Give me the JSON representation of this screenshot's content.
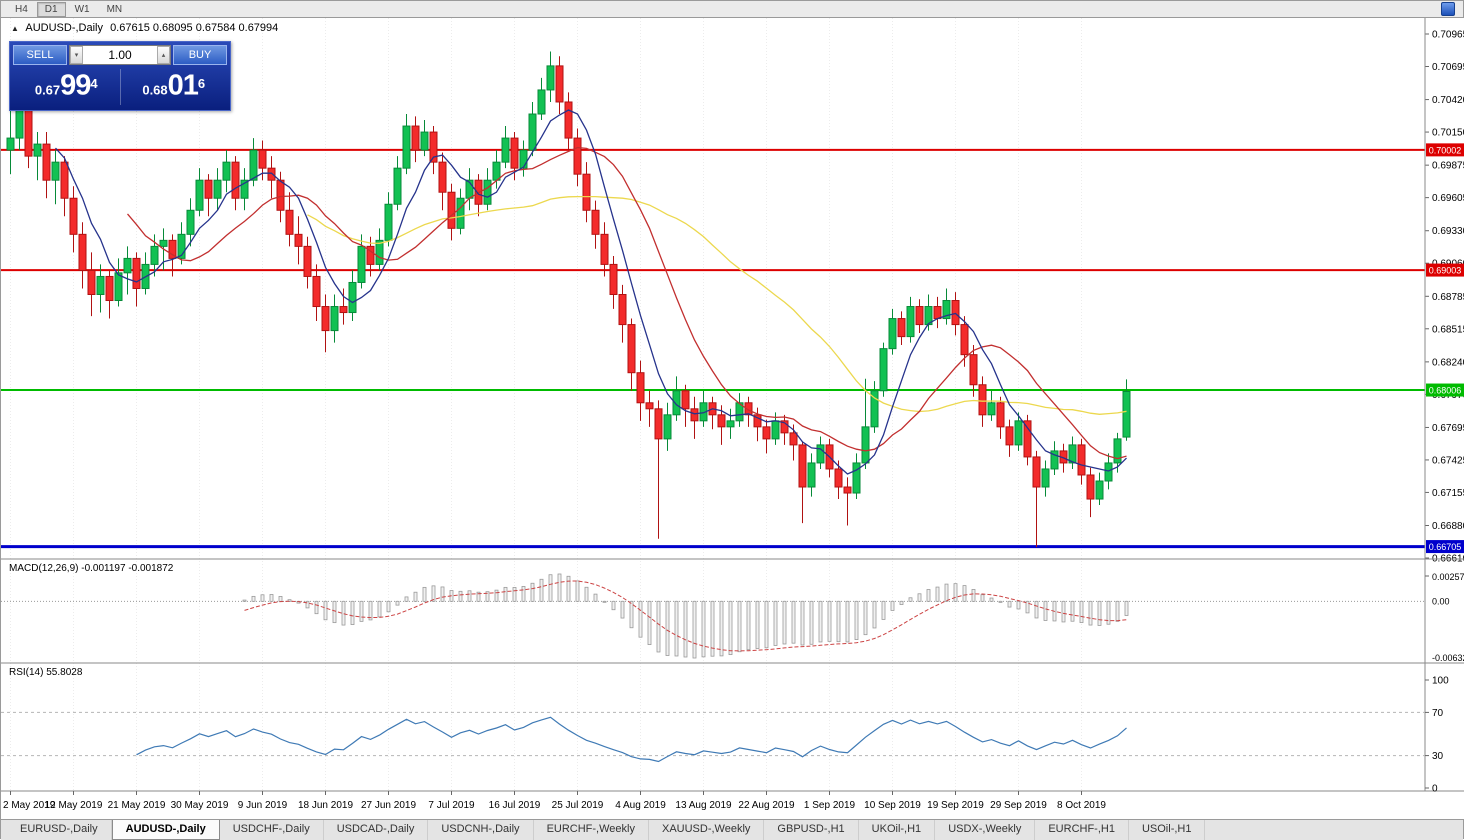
{
  "toolbar": {
    "timeframes": [
      "H4",
      "D1",
      "W1",
      "MN"
    ],
    "active": "D1"
  },
  "window": {
    "chart_icon": "chart-window-icon"
  },
  "chart_header": {
    "collapse_icon": "▲",
    "title": "AUDUSD-,Daily",
    "ohlc": "0.67615 0.68095 0.67584 0.67994"
  },
  "trade_panel": {
    "sell_label": "SELL",
    "buy_label": "BUY",
    "volume": "1.00",
    "bid": {
      "prefix": "0.67",
      "big": "99",
      "sup": "4"
    },
    "ask": {
      "prefix": "0.68",
      "big": "01",
      "sup": "6"
    }
  },
  "indicators": {
    "macd_label": "MACD(12,26,9) -0.001197 -0.001872",
    "rsi_label": "RSI(14) 55.8028"
  },
  "axes": {
    "price_labels": [
      "0.70965",
      "0.70695",
      "0.70420",
      "0.70150",
      "0.69875",
      "0.69605",
      "0.69330",
      "0.69060",
      "0.68785",
      "0.68515",
      "0.68240",
      "0.67970",
      "0.67695",
      "0.67425",
      "0.67155",
      "0.66880",
      "0.66610"
    ],
    "macd_labels": [
      "0.002574",
      "0.00",
      "-0.006326"
    ],
    "rsi_labels": [
      "100",
      "70",
      "30",
      "0"
    ]
  },
  "levels": [
    {
      "price": 0.70002,
      "label": "0.70002",
      "color": "#dd0000",
      "width": 2
    },
    {
      "price": 0.69003,
      "label": "0.69003",
      "color": "#dd0000",
      "width": 2
    },
    {
      "price": 0.68006,
      "label": "0.68006",
      "color": "#00bb00",
      "width": 2
    },
    {
      "price": 0.66705,
      "label": "0.66705",
      "color": "#0000cc",
      "width": 3
    }
  ],
  "colors": {
    "bull": "#12c153",
    "bull_border": "#078a38",
    "bear": "#f32b2b",
    "bear_border": "#b01212",
    "ma_fast": "#26338c",
    "ma_mid": "#c22f2f",
    "ma_slow": "#ecd84e",
    "rsi": "#3f7ab5",
    "macd_signal": "#cc4444",
    "macd_bar": "#9a9a9a"
  },
  "chart_data": {
    "type": "candlestick",
    "symbol": "AUDUSD-",
    "timeframe": "Daily",
    "title": "AUDUSD-,Daily",
    "ohlc_display": [
      0.67615,
      0.68095,
      0.67584,
      0.67994
    ],
    "price_axis_range": [
      0.6661,
      0.70965
    ],
    "x_date_labels": [
      "2 May 2019",
      "12 May 2019",
      "21 May 2019",
      "30 May 2019",
      "9 Jun 2019",
      "18 Jun 2019",
      "27 Jun 2019",
      "7 Jul 2019",
      "16 Jul 2019",
      "25 Jul 2019",
      "4 Aug 2019",
      "13 Aug 2019",
      "22 Aug 2019",
      "1 Sep 2019",
      "10 Sep 2019",
      "19 Sep 2019",
      "29 Sep 2019",
      "8 Oct 2019"
    ],
    "horizontal_levels": [
      0.70002,
      0.69003,
      0.68006,
      0.66705
    ],
    "overlays": [
      {
        "name": "ma-slow",
        "period": 34,
        "color": "#ecd84e"
      },
      {
        "name": "ma-mid",
        "period": 14,
        "color": "#c22f2f"
      },
      {
        "name": "ma-fast",
        "period": 6,
        "color": "#26338c"
      }
    ],
    "panels": [
      {
        "name": "MACD",
        "params": "12,26,9",
        "values": [
          -0.001197,
          -0.001872
        ],
        "axis": [
          0.002574,
          0.0,
          -0.006326
        ]
      },
      {
        "name": "RSI",
        "params": "14",
        "value": 55.8028,
        "axis": [
          100,
          70,
          30,
          0
        ]
      }
    ],
    "candles": [
      [
        0.7,
        0.704,
        0.698,
        0.701
      ],
      [
        0.701,
        0.7065,
        0.7,
        0.7035
      ],
      [
        0.7035,
        0.7045,
        0.6985,
        0.6995
      ],
      [
        0.6995,
        0.7015,
        0.6975,
        0.7005
      ],
      [
        0.7005,
        0.7015,
        0.696,
        0.6975
      ],
      [
        0.6975,
        0.7,
        0.6955,
        0.699
      ],
      [
        0.699,
        0.6995,
        0.6945,
        0.696
      ],
      [
        0.696,
        0.697,
        0.6915,
        0.693
      ],
      [
        0.693,
        0.694,
        0.6885,
        0.69
      ],
      [
        0.69,
        0.6915,
        0.6862,
        0.688
      ],
      [
        0.688,
        0.6905,
        0.6865,
        0.6895
      ],
      [
        0.6895,
        0.69,
        0.686,
        0.6875
      ],
      [
        0.6875,
        0.691,
        0.687,
        0.6898
      ],
      [
        0.6898,
        0.692,
        0.688,
        0.691
      ],
      [
        0.691,
        0.6915,
        0.687,
        0.6885
      ],
      [
        0.6885,
        0.6915,
        0.688,
        0.6905
      ],
      [
        0.6905,
        0.693,
        0.6895,
        0.692
      ],
      [
        0.692,
        0.6935,
        0.69,
        0.6925
      ],
      [
        0.6925,
        0.693,
        0.6895,
        0.691
      ],
      [
        0.691,
        0.694,
        0.6905,
        0.693
      ],
      [
        0.693,
        0.696,
        0.692,
        0.695
      ],
      [
        0.695,
        0.6985,
        0.6945,
        0.6975
      ],
      [
        0.6975,
        0.698,
        0.6945,
        0.696
      ],
      [
        0.696,
        0.6985,
        0.695,
        0.6975
      ],
      [
        0.6975,
        0.7,
        0.6965,
        0.699
      ],
      [
        0.699,
        0.6995,
        0.695,
        0.696
      ],
      [
        0.696,
        0.6985,
        0.695,
        0.6975
      ],
      [
        0.6975,
        0.701,
        0.697,
        0.7
      ],
      [
        0.7,
        0.7008,
        0.6975,
        0.6985
      ],
      [
        0.6985,
        0.6995,
        0.696,
        0.6975
      ],
      [
        0.6975,
        0.6982,
        0.694,
        0.695
      ],
      [
        0.695,
        0.6965,
        0.692,
        0.693
      ],
      [
        0.693,
        0.6945,
        0.6905,
        0.692
      ],
      [
        0.692,
        0.6928,
        0.6885,
        0.6895
      ],
      [
        0.6895,
        0.6905,
        0.6858,
        0.687
      ],
      [
        0.687,
        0.688,
        0.6832,
        0.685
      ],
      [
        0.685,
        0.688,
        0.684,
        0.687
      ],
      [
        0.687,
        0.6885,
        0.6855,
        0.6865
      ],
      [
        0.6865,
        0.69,
        0.6858,
        0.689
      ],
      [
        0.689,
        0.693,
        0.6885,
        0.692
      ],
      [
        0.692,
        0.6928,
        0.6895,
        0.6905
      ],
      [
        0.6905,
        0.6935,
        0.69,
        0.6925
      ],
      [
        0.6925,
        0.6965,
        0.692,
        0.6955
      ],
      [
        0.6955,
        0.6995,
        0.695,
        0.6985
      ],
      [
        0.6985,
        0.703,
        0.698,
        0.702
      ],
      [
        0.702,
        0.7028,
        0.699,
        0.7
      ],
      [
        0.7,
        0.7025,
        0.6995,
        0.7015
      ],
      [
        0.7015,
        0.702,
        0.698,
        0.699
      ],
      [
        0.699,
        0.6998,
        0.695,
        0.6965
      ],
      [
        0.6965,
        0.6972,
        0.6925,
        0.6935
      ],
      [
        0.6935,
        0.6968,
        0.693,
        0.696
      ],
      [
        0.696,
        0.6985,
        0.695,
        0.6975
      ],
      [
        0.6975,
        0.698,
        0.6945,
        0.6955
      ],
      [
        0.6955,
        0.6985,
        0.695,
        0.6975
      ],
      [
        0.6975,
        0.7,
        0.6968,
        0.699
      ],
      [
        0.699,
        0.702,
        0.6985,
        0.701
      ],
      [
        0.701,
        0.7015,
        0.6975,
        0.6985
      ],
      [
        0.6985,
        0.7008,
        0.6978,
        0.7
      ],
      [
        0.7,
        0.704,
        0.6995,
        0.703
      ],
      [
        0.703,
        0.706,
        0.7025,
        0.705
      ],
      [
        0.705,
        0.7082,
        0.704,
        0.707
      ],
      [
        0.707,
        0.7078,
        0.703,
        0.704
      ],
      [
        0.704,
        0.7048,
        0.7,
        0.701
      ],
      [
        0.701,
        0.7018,
        0.697,
        0.698
      ],
      [
        0.698,
        0.699,
        0.694,
        0.695
      ],
      [
        0.695,
        0.6958,
        0.6918,
        0.693
      ],
      [
        0.693,
        0.694,
        0.6895,
        0.6905
      ],
      [
        0.6905,
        0.6912,
        0.6868,
        0.688
      ],
      [
        0.688,
        0.6888,
        0.684,
        0.6855
      ],
      [
        0.6855,
        0.686,
        0.68,
        0.6815
      ],
      [
        0.6815,
        0.6825,
        0.6775,
        0.679
      ],
      [
        0.679,
        0.68,
        0.677,
        0.6785
      ],
      [
        0.6785,
        0.6792,
        0.6677,
        0.676
      ],
      [
        0.676,
        0.679,
        0.675,
        0.678
      ],
      [
        0.678,
        0.6812,
        0.6775,
        0.68
      ],
      [
        0.68,
        0.6805,
        0.677,
        0.6785
      ],
      [
        0.6785,
        0.6795,
        0.676,
        0.6775
      ],
      [
        0.6775,
        0.68,
        0.677,
        0.679
      ],
      [
        0.679,
        0.6795,
        0.6768,
        0.678
      ],
      [
        0.678,
        0.6788,
        0.6755,
        0.677
      ],
      [
        0.677,
        0.6785,
        0.676,
        0.6775
      ],
      [
        0.6775,
        0.6798,
        0.677,
        0.679
      ],
      [
        0.679,
        0.6795,
        0.677,
        0.678
      ],
      [
        0.678,
        0.6786,
        0.6758,
        0.677
      ],
      [
        0.677,
        0.6776,
        0.6748,
        0.676
      ],
      [
        0.676,
        0.6782,
        0.6755,
        0.6775
      ],
      [
        0.6775,
        0.678,
        0.6755,
        0.6765
      ],
      [
        0.6765,
        0.6772,
        0.6742,
        0.6755
      ],
      [
        0.6755,
        0.6758,
        0.669,
        0.672
      ],
      [
        0.672,
        0.6748,
        0.6712,
        0.674
      ],
      [
        0.674,
        0.6762,
        0.6735,
        0.6755
      ],
      [
        0.6755,
        0.676,
        0.6728,
        0.6735
      ],
      [
        0.6735,
        0.6742,
        0.671,
        0.672
      ],
      [
        0.672,
        0.6728,
        0.6688,
        0.6715
      ],
      [
        0.6715,
        0.6748,
        0.671,
        0.674
      ],
      [
        0.674,
        0.681,
        0.6735,
        0.677
      ],
      [
        0.677,
        0.6808,
        0.6765,
        0.68
      ],
      [
        0.68,
        0.684,
        0.6795,
        0.6835
      ],
      [
        0.6835,
        0.6868,
        0.683,
        0.686
      ],
      [
        0.686,
        0.6866,
        0.6838,
        0.6845
      ],
      [
        0.6845,
        0.6878,
        0.684,
        0.687
      ],
      [
        0.687,
        0.6876,
        0.6848,
        0.6855
      ],
      [
        0.6855,
        0.688,
        0.685,
        0.687
      ],
      [
        0.687,
        0.6878,
        0.6852,
        0.686
      ],
      [
        0.686,
        0.6885,
        0.6855,
        0.6875
      ],
      [
        0.6875,
        0.6882,
        0.6846,
        0.6855
      ],
      [
        0.6855,
        0.6862,
        0.682,
        0.683
      ],
      [
        0.683,
        0.6838,
        0.6795,
        0.6805
      ],
      [
        0.6805,
        0.6812,
        0.677,
        0.678
      ],
      [
        0.678,
        0.68,
        0.6775,
        0.679
      ],
      [
        0.679,
        0.6795,
        0.676,
        0.677
      ],
      [
        0.677,
        0.6776,
        0.6745,
        0.6755
      ],
      [
        0.6755,
        0.6782,
        0.675,
        0.6775
      ],
      [
        0.6775,
        0.678,
        0.6738,
        0.6745
      ],
      [
        0.6745,
        0.675,
        0.667,
        0.672
      ],
      [
        0.672,
        0.6742,
        0.6712,
        0.6735
      ],
      [
        0.6735,
        0.6758,
        0.673,
        0.675
      ],
      [
        0.675,
        0.6756,
        0.6732,
        0.674
      ],
      [
        0.674,
        0.6762,
        0.6735,
        0.6755
      ],
      [
        0.6755,
        0.676,
        0.6722,
        0.673
      ],
      [
        0.673,
        0.6736,
        0.6695,
        0.671
      ],
      [
        0.671,
        0.6732,
        0.6705,
        0.6725
      ],
      [
        0.6725,
        0.6748,
        0.6718,
        0.674
      ],
      [
        0.674,
        0.6765,
        0.6732,
        0.676
      ],
      [
        0.67615,
        0.68095,
        0.67584,
        0.67994
      ]
    ]
  },
  "tabs": {
    "active_index": 1,
    "items": [
      "EURUSD-,Daily",
      "AUDUSD-,Daily",
      "USDCHF-,Daily",
      "USDCAD-,Daily",
      "USDCNH-,Daily",
      "EURCHF-,Weekly",
      "XAUUSD-,Weekly",
      "GBPUSD-,H1",
      "UKOil-,H1",
      "USDX-,Weekly",
      "EURCHF-,H1",
      "USOil-,H1"
    ]
  }
}
